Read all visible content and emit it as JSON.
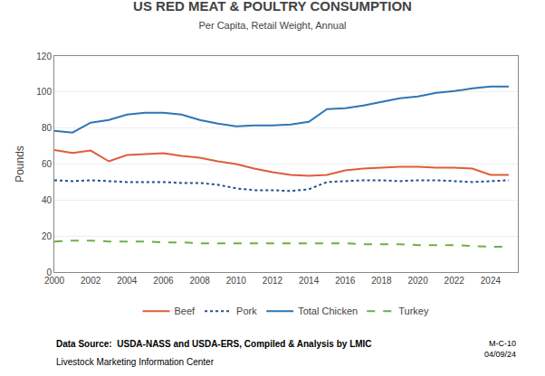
{
  "chart_data": {
    "type": "line",
    "title": "US RED MEAT & POULTRY CONSUMPTION",
    "subtitle": "Per Capita, Retail Weight, Annual",
    "ylabel": "Pounds",
    "annotations": [
      "Data Source:  USDA-NASS and USDA-ERS, Compiled & Analysis by LMIC",
      "Livestock Marketing Information Center",
      "M-C-10\n04/09/24"
    ],
    "x": [
      2000,
      2001,
      2002,
      2003,
      2004,
      2005,
      2006,
      2007,
      2008,
      2009,
      2010,
      2011,
      2012,
      2013,
      2014,
      2015,
      2016,
      2017,
      2018,
      2019,
      2020,
      2021,
      2022,
      2023,
      2024,
      2025
    ],
    "series": [
      {
        "name": "Beef",
        "color": "#e05c3a",
        "line_style": "solid",
        "values": [
          67.8,
          66.2,
          67.5,
          61.5,
          65.0,
          65.5,
          66.0,
          64.5,
          63.5,
          61.5,
          60.0,
          57.5,
          55.5,
          54.0,
          53.5,
          54.0,
          56.5,
          57.5,
          58.0,
          58.5,
          58.5,
          58.0,
          58.0,
          57.5,
          54.0,
          54.0
        ]
      },
      {
        "name": "Pork",
        "color": "#1f4e8c",
        "line_style": "dotted",
        "values": [
          51.0,
          50.5,
          51.0,
          50.5,
          50.0,
          50.0,
          50.0,
          49.5,
          49.5,
          48.5,
          46.5,
          45.5,
          45.5,
          45.0,
          46.0,
          50.0,
          50.5,
          51.0,
          51.0,
          50.5,
          51.0,
          51.0,
          50.5,
          50.0,
          50.5,
          51.0
        ]
      },
      {
        "name": "Total Chicken",
        "color": "#2e75b6",
        "line_style": "solid",
        "values": [
          78.5,
          77.5,
          83.0,
          84.5,
          87.5,
          88.5,
          88.5,
          87.5,
          84.5,
          82.5,
          81.0,
          81.5,
          81.5,
          82.0,
          83.5,
          90.5,
          91.0,
          92.5,
          94.5,
          96.5,
          97.5,
          99.5,
          100.5,
          102.0,
          103.0,
          103.0
        ]
      },
      {
        "name": "Turkey",
        "color": "#70ad47",
        "line_style": "dashed",
        "values": [
          17.0,
          17.5,
          17.5,
          17.0,
          17.0,
          17.0,
          16.5,
          16.5,
          16.0,
          16.0,
          16.0,
          16.0,
          16.0,
          16.0,
          16.0,
          16.0,
          16.0,
          15.5,
          15.5,
          15.5,
          15.0,
          15.0,
          15.0,
          14.5,
          14.0,
          14.0
        ]
      }
    ],
    "xlim": [
      2000,
      2025.5
    ],
    "ylim": [
      0,
      120
    ],
    "xticks": [
      2000,
      2002,
      2004,
      2006,
      2008,
      2010,
      2012,
      2014,
      2016,
      2018,
      2020,
      2022,
      2024
    ],
    "yticks": [
      0,
      20,
      40,
      60,
      80,
      100,
      120
    ],
    "grid": "y",
    "legend": "bottom"
  }
}
